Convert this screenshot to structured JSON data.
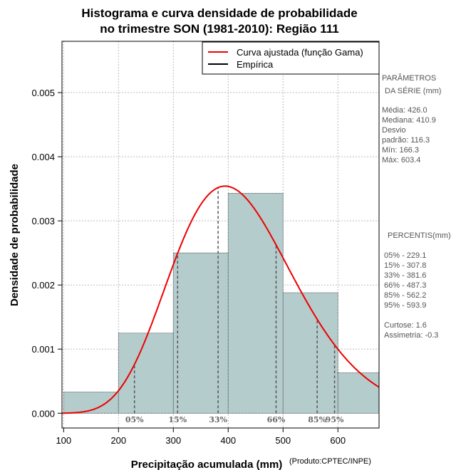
{
  "chart_data": {
    "type": "bar",
    "title": "Histograma e curva densidade de probabilidade",
    "subtitle": "no trimestre SON (1981-2010): Região 111",
    "xlabel": "Precipitação acumulada (mm)",
    "ylabel": "Densidade de probabilidade",
    "credit": "(Produto:CPTEC/INPE)",
    "xlim": [
      97,
      675
    ],
    "ylim": [
      -0.00023,
      0.0058
    ],
    "x_ticks": [
      100,
      200,
      300,
      400,
      500,
      600
    ],
    "x_tick_labels": [
      "100",
      "200",
      "300",
      "400",
      "500",
      "600"
    ],
    "y_ticks": [
      0,
      0.001,
      0.002,
      0.003,
      0.004,
      0.005
    ],
    "y_tick_labels": [
      "0.000",
      "0.001",
      "0.002",
      "0.003",
      "0.004",
      "0.005"
    ],
    "bins": [
      {
        "from": 100,
        "to": 200,
        "density": 0.00033
      },
      {
        "from": 200,
        "to": 300,
        "density": 0.00125
      },
      {
        "from": 300,
        "to": 400,
        "density": 0.0025
      },
      {
        "from": 400,
        "to": 500,
        "density": 0.00343
      },
      {
        "from": 500,
        "to": 600,
        "density": 0.00188
      },
      {
        "from": 600,
        "to": 700,
        "density": 0.00063
      }
    ],
    "fitted_curve": {
      "distribution": "gamma",
      "mean": 426.0,
      "sd": 116.3
    },
    "percentile_lines": [
      {
        "label": "05%",
        "value": 229.1
      },
      {
        "label": "15%",
        "value": 307.8
      },
      {
        "label": "33%",
        "value": 381.6
      },
      {
        "label": "66%",
        "value": 487.3
      },
      {
        "label": "85%",
        "value": 562.2
      },
      {
        "label": "95%",
        "value": 593.9
      }
    ],
    "legend": {
      "position": "top-right",
      "entries": [
        {
          "label": "Curva ajustada (função Gama)",
          "color": "#ee0000"
        },
        {
          "label": "Empírica",
          "color": "#000000"
        }
      ]
    },
    "colors": {
      "bar_fill": "#b5cccc",
      "curve": "#ee0000",
      "grid": "#bbbbbb",
      "percentile": "#555555"
    }
  },
  "side_panel": {
    "params_title_1": "PARÂMETROS",
    "params_title_2": "DA SÉRIE (mm)",
    "stats": [
      "Média:  426.0",
      "Mediana:  410.9",
      "Desvio",
      "padrão:  116.3",
      "Mín:  166.3",
      "Máx:  603.4"
    ],
    "percentis_title": "PERCENTIS(mm)",
    "percentis": [
      "05% -  229.1",
      "15% -  307.8",
      "33% -  381.6",
      "66% -  487.3",
      "85% -  562.2",
      "95% -  593.9"
    ],
    "shape": [
      "Curtose:  1.6",
      "Assimetria:  -0.3"
    ]
  }
}
